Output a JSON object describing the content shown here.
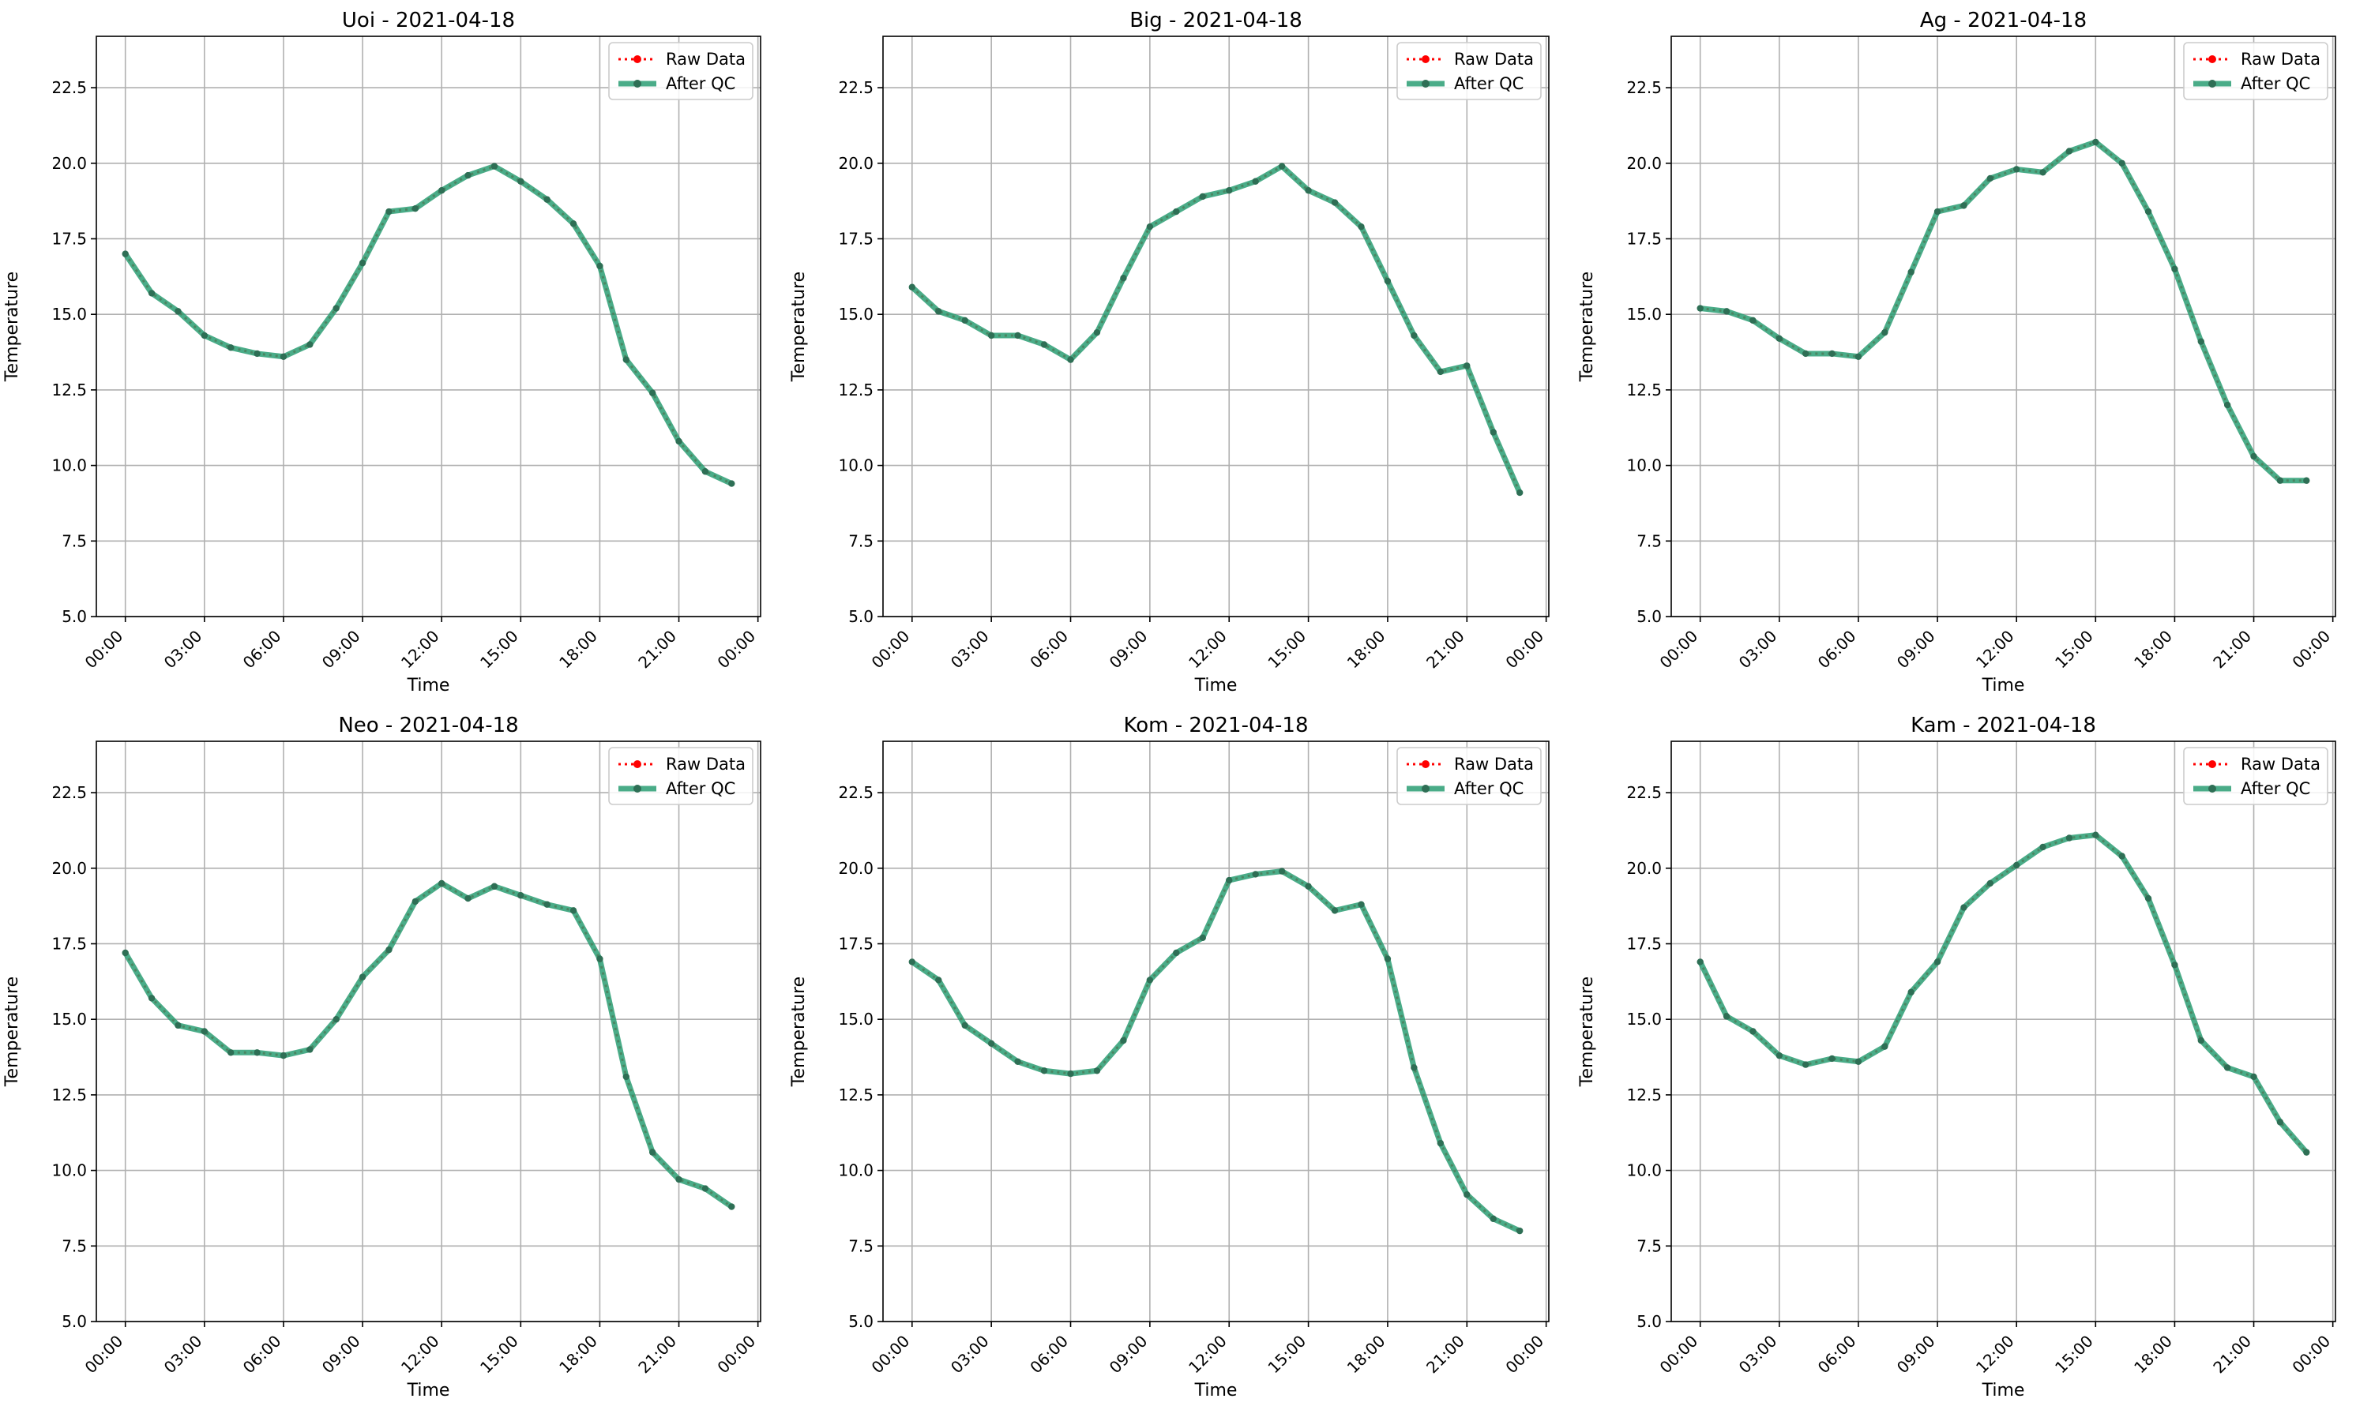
{
  "colors": {
    "raw": "#ff0000",
    "qc": "#2a9d73",
    "qc_marker": "#2e6f55",
    "grid": "#b0b0b0",
    "axes": "#000000",
    "legend_border": "#cccccc"
  },
  "chart_data": [
    {
      "type": "line",
      "title": "Uoi - 2021-04-18",
      "xlabel": "Time",
      "ylabel": "Temperature",
      "xlim": [
        -1.1,
        24.1
      ],
      "ylim": [
        5.0,
        24.2
      ],
      "xticks": [
        0,
        3,
        6,
        9,
        12,
        15,
        18,
        21,
        24
      ],
      "xtick_labels": [
        "00:00",
        "03:00",
        "06:00",
        "09:00",
        "12:00",
        "15:00",
        "18:00",
        "21:00",
        "00:00"
      ],
      "yticks": [
        5.0,
        7.5,
        10.0,
        12.5,
        15.0,
        17.5,
        20.0,
        22.5
      ],
      "ytick_labels": [
        "5.0",
        "7.5",
        "10.0",
        "12.5",
        "15.0",
        "17.5",
        "20.0",
        "22.5"
      ],
      "grid": true,
      "legend_position": "top-right",
      "x_hours": [
        0,
        1,
        2,
        3,
        4,
        5,
        6,
        7,
        8,
        9,
        10,
        11,
        12,
        13,
        14,
        15,
        16,
        17,
        18,
        19,
        20,
        21,
        22,
        23
      ],
      "series": [
        {
          "name": "Raw Data",
          "values": [
            17.0,
            15.7,
            15.1,
            14.3,
            13.9,
            13.7,
            13.6,
            14.0,
            15.2,
            16.7,
            18.4,
            18.5,
            19.1,
            19.6,
            19.9,
            19.4,
            18.8,
            18.0,
            16.6,
            13.5,
            12.4,
            10.8,
            9.8,
            9.4
          ]
        },
        {
          "name": "After QC",
          "values": [
            17.0,
            15.7,
            15.1,
            14.3,
            13.9,
            13.7,
            13.6,
            14.0,
            15.2,
            16.7,
            18.4,
            18.5,
            19.1,
            19.6,
            19.9,
            19.4,
            18.8,
            18.0,
            16.6,
            13.5,
            12.4,
            10.8,
            9.8,
            9.4
          ]
        }
      ]
    },
    {
      "type": "line",
      "title": "Big - 2021-04-18",
      "xlabel": "Time",
      "ylabel": "Temperature",
      "xlim": [
        -1.1,
        24.1
      ],
      "ylim": [
        5.0,
        24.2
      ],
      "xticks": [
        0,
        3,
        6,
        9,
        12,
        15,
        18,
        21,
        24
      ],
      "xtick_labels": [
        "00:00",
        "03:00",
        "06:00",
        "09:00",
        "12:00",
        "15:00",
        "18:00",
        "21:00",
        "00:00"
      ],
      "yticks": [
        5.0,
        7.5,
        10.0,
        12.5,
        15.0,
        17.5,
        20.0,
        22.5
      ],
      "ytick_labels": [
        "5.0",
        "7.5",
        "10.0",
        "12.5",
        "15.0",
        "17.5",
        "20.0",
        "22.5"
      ],
      "grid": true,
      "legend_position": "top-right",
      "x_hours": [
        0,
        1,
        2,
        3,
        4,
        5,
        6,
        7,
        8,
        9,
        10,
        11,
        12,
        13,
        14,
        15,
        16,
        17,
        18,
        19,
        20,
        21,
        22,
        23
      ],
      "series": [
        {
          "name": "Raw Data",
          "values": [
            15.9,
            15.1,
            14.8,
            14.3,
            14.3,
            14.0,
            13.5,
            14.4,
            16.2,
            17.9,
            18.4,
            18.9,
            19.1,
            19.4,
            19.9,
            19.1,
            18.7,
            17.9,
            16.1,
            14.3,
            13.1,
            13.3,
            11.1,
            9.1
          ]
        },
        {
          "name": "After QC",
          "values": [
            15.9,
            15.1,
            14.8,
            14.3,
            14.3,
            14.0,
            13.5,
            14.4,
            16.2,
            17.9,
            18.4,
            18.9,
            19.1,
            19.4,
            19.9,
            19.1,
            18.7,
            17.9,
            16.1,
            14.3,
            13.1,
            13.3,
            11.1,
            9.1
          ]
        }
      ]
    },
    {
      "type": "line",
      "title": "Ag - 2021-04-18",
      "xlabel": "Time",
      "ylabel": "Temperature",
      "xlim": [
        -1.1,
        24.1
      ],
      "ylim": [
        5.0,
        24.2
      ],
      "xticks": [
        0,
        3,
        6,
        9,
        12,
        15,
        18,
        21,
        24
      ],
      "xtick_labels": [
        "00:00",
        "03:00",
        "06:00",
        "09:00",
        "12:00",
        "15:00",
        "18:00",
        "21:00",
        "00:00"
      ],
      "yticks": [
        5.0,
        7.5,
        10.0,
        12.5,
        15.0,
        17.5,
        20.0,
        22.5
      ],
      "ytick_labels": [
        "5.0",
        "7.5",
        "10.0",
        "12.5",
        "15.0",
        "17.5",
        "20.0",
        "22.5"
      ],
      "grid": true,
      "legend_position": "top-right",
      "x_hours": [
        0,
        1,
        2,
        3,
        4,
        5,
        6,
        7,
        8,
        9,
        10,
        11,
        12,
        13,
        14,
        15,
        16,
        17,
        18,
        19,
        20,
        21,
        22,
        23
      ],
      "series": [
        {
          "name": "Raw Data",
          "values": [
            15.2,
            15.1,
            14.8,
            14.2,
            13.7,
            13.7,
            13.6,
            14.4,
            16.4,
            18.4,
            18.6,
            19.5,
            19.8,
            19.7,
            20.4,
            20.7,
            20.0,
            18.4,
            16.5,
            14.1,
            12.0,
            10.3,
            9.5,
            9.5
          ]
        },
        {
          "name": "After QC",
          "values": [
            15.2,
            15.1,
            14.8,
            14.2,
            13.7,
            13.7,
            13.6,
            14.4,
            16.4,
            18.4,
            18.6,
            19.5,
            19.8,
            19.7,
            20.4,
            20.7,
            20.0,
            18.4,
            16.5,
            14.1,
            12.0,
            10.3,
            9.5,
            9.5
          ]
        }
      ]
    },
    {
      "type": "line",
      "title": "Neo - 2021-04-18",
      "xlabel": "Time",
      "ylabel": "Temperature",
      "xlim": [
        -1.1,
        24.1
      ],
      "ylim": [
        5.0,
        24.2
      ],
      "xticks": [
        0,
        3,
        6,
        9,
        12,
        15,
        18,
        21,
        24
      ],
      "xtick_labels": [
        "00:00",
        "03:00",
        "06:00",
        "09:00",
        "12:00",
        "15:00",
        "18:00",
        "21:00",
        "00:00"
      ],
      "yticks": [
        5.0,
        7.5,
        10.0,
        12.5,
        15.0,
        17.5,
        20.0,
        22.5
      ],
      "ytick_labels": [
        "5.0",
        "7.5",
        "10.0",
        "12.5",
        "15.0",
        "17.5",
        "20.0",
        "22.5"
      ],
      "grid": true,
      "legend_position": "top-right",
      "x_hours": [
        0,
        1,
        2,
        3,
        4,
        5,
        6,
        7,
        8,
        9,
        10,
        11,
        12,
        13,
        14,
        15,
        16,
        17,
        18,
        19,
        20,
        21,
        22,
        23
      ],
      "series": [
        {
          "name": "Raw Data",
          "values": [
            17.2,
            15.7,
            14.8,
            14.6,
            13.9,
            13.9,
            13.8,
            14.0,
            15.0,
            16.4,
            17.3,
            18.9,
            19.5,
            19.0,
            19.4,
            19.1,
            18.8,
            18.6,
            17.0,
            13.1,
            10.6,
            9.7,
            9.4,
            8.8
          ]
        },
        {
          "name": "After QC",
          "values": [
            17.2,
            15.7,
            14.8,
            14.6,
            13.9,
            13.9,
            13.8,
            14.0,
            15.0,
            16.4,
            17.3,
            18.9,
            19.5,
            19.0,
            19.4,
            19.1,
            18.8,
            18.6,
            17.0,
            13.1,
            10.6,
            9.7,
            9.4,
            8.8
          ]
        }
      ]
    },
    {
      "type": "line",
      "title": "Kom - 2021-04-18",
      "xlabel": "Time",
      "ylabel": "Temperature",
      "xlim": [
        -1.1,
        24.1
      ],
      "ylim": [
        5.0,
        24.2
      ],
      "xticks": [
        0,
        3,
        6,
        9,
        12,
        15,
        18,
        21,
        24
      ],
      "xtick_labels": [
        "00:00",
        "03:00",
        "06:00",
        "09:00",
        "12:00",
        "15:00",
        "18:00",
        "21:00",
        "00:00"
      ],
      "yticks": [
        5.0,
        7.5,
        10.0,
        12.5,
        15.0,
        17.5,
        20.0,
        22.5
      ],
      "ytick_labels": [
        "5.0",
        "7.5",
        "10.0",
        "12.5",
        "15.0",
        "17.5",
        "20.0",
        "22.5"
      ],
      "grid": true,
      "legend_position": "top-right",
      "x_hours": [
        0,
        1,
        2,
        3,
        4,
        5,
        6,
        7,
        8,
        9,
        10,
        11,
        12,
        13,
        14,
        15,
        16,
        17,
        18,
        19,
        20,
        21,
        22,
        23
      ],
      "series": [
        {
          "name": "Raw Data",
          "values": [
            16.9,
            16.3,
            14.8,
            14.2,
            13.6,
            13.3,
            13.2,
            13.3,
            14.3,
            16.3,
            17.2,
            17.7,
            19.6,
            19.8,
            19.9,
            19.4,
            18.6,
            18.8,
            17.0,
            13.4,
            10.9,
            9.2,
            8.4,
            8.0
          ]
        },
        {
          "name": "After QC",
          "values": [
            16.9,
            16.3,
            14.8,
            14.2,
            13.6,
            13.3,
            13.2,
            13.3,
            14.3,
            16.3,
            17.2,
            17.7,
            19.6,
            19.8,
            19.9,
            19.4,
            18.6,
            18.8,
            17.0,
            13.4,
            10.9,
            9.2,
            8.4,
            8.0
          ]
        }
      ]
    },
    {
      "type": "line",
      "title": "Kam - 2021-04-18",
      "xlabel": "Time",
      "ylabel": "Temperature",
      "xlim": [
        -1.1,
        24.1
      ],
      "ylim": [
        5.0,
        24.2
      ],
      "xticks": [
        0,
        3,
        6,
        9,
        12,
        15,
        18,
        21,
        24
      ],
      "xtick_labels": [
        "00:00",
        "03:00",
        "06:00",
        "09:00",
        "12:00",
        "15:00",
        "18:00",
        "21:00",
        "00:00"
      ],
      "yticks": [
        5.0,
        7.5,
        10.0,
        12.5,
        15.0,
        17.5,
        20.0,
        22.5
      ],
      "ytick_labels": [
        "5.0",
        "7.5",
        "10.0",
        "12.5",
        "15.0",
        "17.5",
        "20.0",
        "22.5"
      ],
      "grid": true,
      "legend_position": "top-right",
      "x_hours": [
        0,
        1,
        2,
        3,
        4,
        5,
        6,
        7,
        8,
        9,
        10,
        11,
        12,
        13,
        14,
        15,
        16,
        17,
        18,
        19,
        20,
        21,
        22,
        23
      ],
      "series": [
        {
          "name": "Raw Data",
          "values": [
            16.9,
            15.1,
            14.6,
            13.8,
            13.5,
            13.7,
            13.6,
            14.1,
            15.9,
            16.9,
            18.7,
            19.5,
            20.1,
            20.7,
            21.0,
            21.1,
            20.4,
            19.0,
            16.8,
            14.3,
            13.4,
            13.1,
            11.6,
            10.6
          ]
        },
        {
          "name": "After QC",
          "values": [
            16.9,
            15.1,
            14.6,
            13.8,
            13.5,
            13.7,
            13.6,
            14.1,
            15.9,
            16.9,
            18.7,
            19.5,
            20.1,
            20.7,
            21.0,
            21.1,
            20.4,
            19.0,
            16.8,
            14.3,
            13.4,
            13.1,
            11.6,
            10.6
          ]
        }
      ]
    }
  ]
}
